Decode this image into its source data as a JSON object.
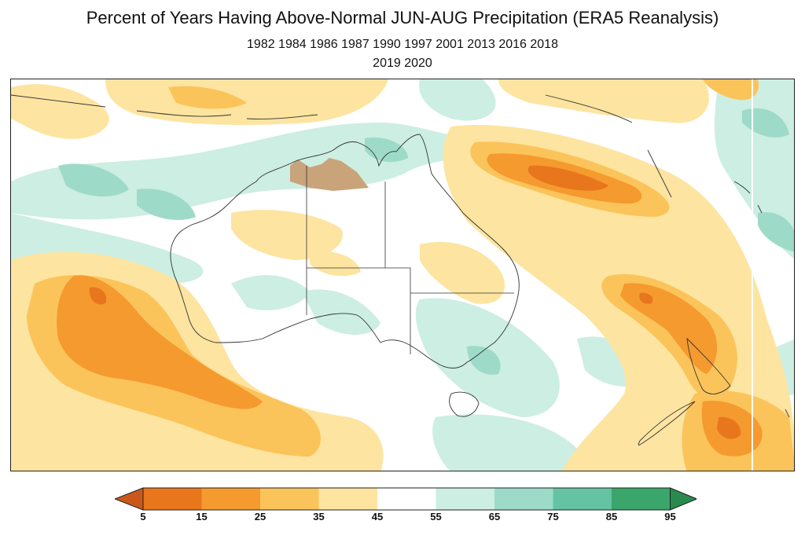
{
  "title": "Percent of Years Having Above-Normal JUN-AUG Precipitation (ERA5 Reanalysis)",
  "years_line1": "1982 1984 1986 1987 1990 1997 2001 2013 2016 2018",
  "years_line2": "2019 2020",
  "colorbar": {
    "ticks": [
      "5",
      "15",
      "25",
      "35",
      "45",
      "55",
      "65",
      "75",
      "85",
      "95"
    ],
    "colors": {
      "lt5": "#c9581a",
      "5-15": "#e8761d",
      "15-25": "#f59a2e",
      "25-35": "#fbc45a",
      "35-45": "#fde4a0",
      "45-55": "#ffffff",
      "55-65": "#cdeee2",
      "65-75": "#9ddbc8",
      "75-85": "#63c3a2",
      "85-95": "#3aa66c",
      "gt95": "#2a8a4e"
    },
    "arrow_low": "#c9581a",
    "arrow_high": "#2a8a4e"
  },
  "map": {
    "region": "Australia and surrounding oceans",
    "projection": "equirectangular",
    "highlight_color": "#c9a37a",
    "coastline_color": "#333333"
  }
}
